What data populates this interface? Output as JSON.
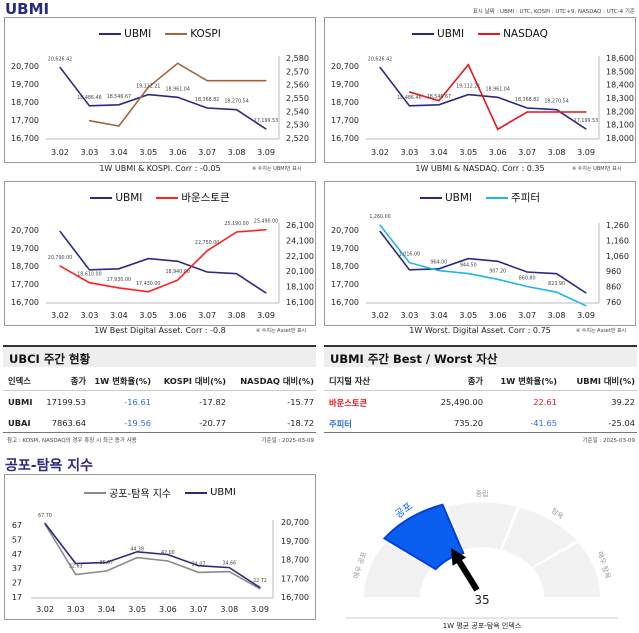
{
  "header": {
    "title": "UBMI",
    "date_note": "표시 날짜 : UBMI : UTC, KOSPI : UTC+9, NASDAQ : UTC-4 기준"
  },
  "colors": {
    "ubmi": "#2b2a7c",
    "kospi": "#a0673f",
    "nasdaq": "#e8141b",
    "best": "#ff2020",
    "worst": "#1eb4f0",
    "fear_greed": "#8a8a8a",
    "gauge_active": "#0a5ff0",
    "gauge_inactive": "#f2f2f2"
  },
  "chart_data": [
    {
      "type": "line",
      "categories": [
        "3.02",
        "3.03",
        "3.04",
        "3.05",
        "3.06",
        "3.07",
        "3.08",
        "3.09"
      ],
      "series": [
        {
          "name": "UBMI",
          "axis": "left",
          "values": [
            20626.42,
            18486.46,
            18546.67,
            19112.21,
            18961.04,
            18368.82,
            18270.54,
            17199.53
          ],
          "data_labels": [
            "20,626.42",
            "18,486.46",
            "18,546.67",
            "19,112.21",
            "18,961.04",
            "18,368.82",
            "18,270.54",
            "17,199.53"
          ]
        },
        {
          "name": "KOSPI",
          "axis": "right",
          "values": [
            null,
            2533,
            2529,
            2558,
            2576,
            2563,
            2563,
            2563
          ]
        }
      ],
      "left_axis": {
        "min": 16700,
        "max": 20700,
        "ticks": [
          "20,700",
          "19,700",
          "18,700",
          "17,700",
          "16,700"
        ]
      },
      "right_axis": {
        "min": 2520,
        "max": 2580,
        "ticks": [
          "2,580",
          "2,570",
          "2,560",
          "2,550",
          "2,540",
          "2,530",
          "2,520"
        ]
      },
      "caption": "1W UBMI & KOSPI. Corr : -0.05",
      "note": "※ 수치는 UBMI만 표시"
    },
    {
      "type": "line",
      "categories": [
        "3.02",
        "3.03",
        "3.04",
        "3.05",
        "3.06",
        "3.07",
        "3.08",
        "3.09"
      ],
      "series": [
        {
          "name": "UBMI",
          "axis": "left",
          "values": [
            20626.42,
            18486.46,
            18546.67,
            19112.21,
            18961.04,
            18368.82,
            18270.54,
            17199.53
          ],
          "data_labels": [
            "20,626.42",
            "18,486.46",
            "18,546.67",
            "19,112.21",
            "18,961.04",
            "18,368.82",
            "18,270.54",
            "17,199.53"
          ]
        },
        {
          "name": "NASDAQ",
          "axis": "right",
          "values": [
            null,
            18345,
            18280,
            18550,
            18065,
            18195,
            18195,
            18195
          ]
        }
      ],
      "left_axis": {
        "min": 16700,
        "max": 20700,
        "ticks": [
          "20,700",
          "19,700",
          "18,700",
          "17,700",
          "16,700"
        ]
      },
      "right_axis": {
        "min": 18000,
        "max": 18600,
        "ticks": [
          "18,600",
          "18,500",
          "18,400",
          "18,300",
          "18,200",
          "18,100",
          "18,000"
        ]
      },
      "caption": "1W UBMI & NASDAQ. Corr : 0.35",
      "note": "※ 수치는 UBMI만 표시"
    },
    {
      "type": "line",
      "categories": [
        "3.02",
        "3.03",
        "3.04",
        "3.05",
        "3.06",
        "3.07",
        "3.08",
        "3.09"
      ],
      "series": [
        {
          "name": "UBMI",
          "axis": "left",
          "values": [
            20626.42,
            18486.46,
            18546.67,
            19112.21,
            18961.04,
            18368.82,
            18270.54,
            17199.53
          ]
        },
        {
          "name": "바운스토큰",
          "axis": "right",
          "values": [
            20790,
            18610,
            17930,
            17430,
            18940,
            22750,
            25190,
            25490
          ],
          "data_labels": [
            "20,790.00",
            "18,610.00",
            "17,930.00",
            "17,430.00",
            "18,940.00",
            "22,750.00",
            "25,190.00",
            "25,490.00"
          ]
        }
      ],
      "left_axis": {
        "min": 16700,
        "max": 20700,
        "ticks": [
          "20,700",
          "19,700",
          "18,700",
          "17,700",
          "16,700"
        ]
      },
      "right_axis": {
        "min": 16100,
        "max": 26100,
        "ticks": [
          "26,100",
          "24,100",
          "22,100",
          "20,100",
          "18,100",
          "16,100"
        ]
      },
      "caption": "1W Best Digital Asset. Corr : -0.8",
      "note": "※ 수치는 Asset만 표시"
    },
    {
      "type": "line",
      "categories": [
        "3.02",
        "3.03",
        "3.04",
        "3.05",
        "3.06",
        "3.07",
        "3.08",
        "3.09"
      ],
      "series": [
        {
          "name": "UBMI",
          "axis": "left",
          "values": [
            20626.42,
            18486.46,
            18546.67,
            19112.21,
            18961.04,
            18368.82,
            18270.54,
            17199.53
          ]
        },
        {
          "name": "주피터",
          "axis": "right",
          "values": [
            1260,
            1016,
            964,
            944.5,
            907.2,
            860.8,
            823.9,
            735.2
          ],
          "data_labels": [
            "1,260.00",
            "1,016.00",
            "964.00",
            "944.50",
            "907.20",
            "860.80",
            "823.90",
            ""
          ]
        }
      ],
      "left_axis": {
        "min": 16700,
        "max": 20700,
        "ticks": [
          "20,700",
          "19,700",
          "18,700",
          "17,700",
          "16,700"
        ]
      },
      "right_axis": {
        "min": 760,
        "max": 1260,
        "ticks": [
          "1,260",
          "1,160",
          "1,060",
          "960",
          "860",
          "760"
        ]
      },
      "caption": "1W Worst. Digital Asset. Corr : 0.75",
      "note": "※ 수치는 Asset만 표시"
    },
    {
      "type": "line",
      "categories": [
        "3.02",
        "3.03",
        "3.04",
        "3.05",
        "3.06",
        "3.07",
        "3.08",
        "3.09"
      ],
      "series": [
        {
          "name": "공포-탐욕 지수",
          "axis": "left",
          "values": [
            67.7,
            32.63,
            35.07,
            44.38,
            42.0,
            34.07,
            34.66,
            22.72
          ],
          "data_labels": [
            "67.70",
            "32.63",
            "35.07",
            "44.38",
            "42.00",
            "34.07",
            "34.66",
            "22.72"
          ]
        },
        {
          "name": "UBMI",
          "axis": "right",
          "values": [
            20626.42,
            18486.46,
            18546.67,
            19112.21,
            18961.04,
            18368.82,
            18270.54,
            17199.53
          ]
        }
      ],
      "left_axis": {
        "min": 17,
        "max": 67,
        "ticks": [
          "67",
          "57",
          "47",
          "37",
          "27",
          "17"
        ]
      },
      "right_axis": {
        "min": 16700,
        "max": 20700,
        "ticks": [
          "20,700",
          "19,700",
          "18,700",
          "17,700",
          "16,700"
        ]
      }
    }
  ],
  "ubci_table": {
    "title": "UBCI 주간 현황",
    "columns": [
      "인덱스",
      "종가",
      "1W 변화율(%)",
      "KOSPI 대비(%)",
      "NASDAQ 대비(%)"
    ],
    "rows": [
      [
        "UBMI",
        "17199.53",
        "-16.61",
        "-17.82",
        "-15.77"
      ],
      [
        "UBAI",
        "7863.64",
        "-19.56",
        "-20.77",
        "-18.72"
      ]
    ],
    "footnote": "참고 : KOSPI, NASDAQ의 경우 휴장 시 최근 종가 사용",
    "base_date": "기준일 : 2025-03-09"
  },
  "best_worst_table": {
    "title": "UBMI 주간 Best / Worst 자산",
    "columns": [
      "디지털 자산",
      "종가",
      "1W 변화율(%)",
      "UBMI 대비(%)"
    ],
    "rows": [
      [
        "바운스토큰",
        "25,490.00",
        "22.61",
        "39.22"
      ],
      [
        "주피터",
        "735.20",
        "-41.65",
        "-25.04"
      ]
    ],
    "base_date": "기준일 : 2025-03-09"
  },
  "fear_greed": {
    "title": "공포-탐욕 지수",
    "gauge": {
      "value": "35",
      "segments": [
        "매우 공포",
        "공포",
        "중립",
        "탐욕",
        "매우 탐욕"
      ],
      "active_segment": "공포",
      "caption": "1W 평균 공포-탐욕 인덱스"
    }
  }
}
